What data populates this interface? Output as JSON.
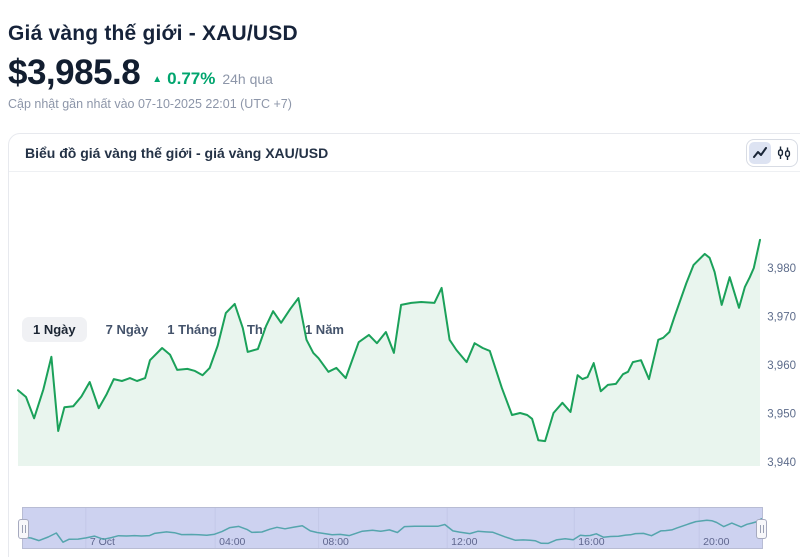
{
  "page": {
    "title": "Giá vàng thế giới - XAU/USD",
    "price": "$3,985.8",
    "change_percent": "0.77%",
    "change_direction": "up",
    "change_period": "24h qua",
    "updated_text": "Cập nhật gần nhất vào 07-10-2025 22:01 (UTC +7)"
  },
  "icons": {
    "up_arrow": "▲"
  },
  "card": {
    "header": "Biểu đồ giá vàng thế giới - giá vàng XAU/USD",
    "chart_type": {
      "active": "line",
      "options": [
        "line",
        "candlestick"
      ]
    },
    "tabs": [
      {
        "label": "1 Ngày",
        "active": true
      },
      {
        "label": "7 Ngày",
        "active": false
      },
      {
        "label": "1 Tháng",
        "active": false
      },
      {
        "label": "3 Tháng",
        "active": false
      },
      {
        "label": "1 Năm",
        "active": false
      }
    ]
  },
  "colors": {
    "accent_green": "#00a56e",
    "line_green": "#1ba15a",
    "area_fill": "#e9f5ee",
    "axis_label": "#5d6c8b",
    "nav_label": "#5f668e",
    "nav_bg": "#cdd2f0",
    "nav_line": "#55a5ad",
    "nav_grid": "#c3c8e8",
    "text_navy": "#16233a",
    "text_gray": "#8d96a9"
  },
  "chart_data": {
    "type": "area",
    "title": "Biểu đồ giá vàng thế giới - giá vàng XAU/USD",
    "legend": "none",
    "grid": "off",
    "x_axis": {
      "start": "06-10-2025 22:00 (UTC +7)",
      "end": "07-10-2025 22:00 (UTC +7)",
      "unit": "hours_from_start",
      "span_hours": 24
    },
    "y_axis": {
      "side": "right",
      "range": [
        3936,
        3990
      ],
      "ticks": [
        3940,
        3950,
        3960,
        3970,
        3980
      ],
      "tick_labels": [
        "3,940",
        "3,950",
        "3,960",
        "3,970",
        "3,980"
      ]
    },
    "series": [
      {
        "name": "XAU/USD",
        "points": [
          [
            0.0,
            3954.8
          ],
          [
            0.26,
            3953.4
          ],
          [
            0.52,
            3949.0
          ],
          [
            0.82,
            3955.0
          ],
          [
            1.08,
            3961.7
          ],
          [
            1.3,
            3946.4
          ],
          [
            1.5,
            3951.3
          ],
          [
            1.79,
            3951.5
          ],
          [
            2.05,
            3953.5
          ],
          [
            2.32,
            3956.5
          ],
          [
            2.61,
            3951.1
          ],
          [
            2.87,
            3954.0
          ],
          [
            3.1,
            3957.1
          ],
          [
            3.36,
            3956.7
          ],
          [
            3.62,
            3957.3
          ],
          [
            3.85,
            3956.7
          ],
          [
            4.11,
            3957.3
          ],
          [
            4.27,
            3961.0
          ],
          [
            4.66,
            3963.5
          ],
          [
            4.92,
            3962.1
          ],
          [
            5.15,
            3959.0
          ],
          [
            5.48,
            3959.2
          ],
          [
            5.71,
            3958.8
          ],
          [
            5.97,
            3957.9
          ],
          [
            6.2,
            3959.4
          ],
          [
            6.46,
            3964.0
          ],
          [
            6.72,
            3970.7
          ],
          [
            7.01,
            3972.6
          ],
          [
            7.27,
            3967.6
          ],
          [
            7.43,
            3962.7
          ],
          [
            7.76,
            3963.3
          ],
          [
            8.02,
            3968.0
          ],
          [
            8.25,
            3971.1
          ],
          [
            8.51,
            3968.7
          ],
          [
            8.8,
            3971.5
          ],
          [
            9.07,
            3973.8
          ],
          [
            9.33,
            3965.2
          ],
          [
            9.55,
            3962.5
          ],
          [
            9.72,
            3961.4
          ],
          [
            10.04,
            3958.6
          ],
          [
            10.3,
            3959.4
          ],
          [
            10.6,
            3957.3
          ],
          [
            11.02,
            3964.7
          ],
          [
            11.35,
            3966.2
          ],
          [
            11.61,
            3964.5
          ],
          [
            11.9,
            3966.8
          ],
          [
            12.16,
            3962.5
          ],
          [
            12.39,
            3972.4
          ],
          [
            12.72,
            3972.8
          ],
          [
            13.04,
            3973.0
          ],
          [
            13.47,
            3972.8
          ],
          [
            13.7,
            3975.9
          ],
          [
            13.96,
            3965.2
          ],
          [
            14.18,
            3963.1
          ],
          [
            14.51,
            3960.6
          ],
          [
            14.77,
            3964.5
          ],
          [
            15.03,
            3963.5
          ],
          [
            15.26,
            3962.9
          ],
          [
            15.65,
            3955.3
          ],
          [
            15.98,
            3949.7
          ],
          [
            16.24,
            3950.1
          ],
          [
            16.47,
            3949.7
          ],
          [
            16.63,
            3948.9
          ],
          [
            16.83,
            3944.5
          ],
          [
            17.05,
            3944.3
          ],
          [
            17.32,
            3950.1
          ],
          [
            17.61,
            3952.2
          ],
          [
            17.87,
            3950.3
          ],
          [
            18.1,
            3957.9
          ],
          [
            18.26,
            3957.1
          ],
          [
            18.42,
            3957.5
          ],
          [
            18.62,
            3960.4
          ],
          [
            18.85,
            3954.6
          ],
          [
            19.08,
            3955.9
          ],
          [
            19.34,
            3956.1
          ],
          [
            19.57,
            3958.1
          ],
          [
            19.73,
            3958.6
          ],
          [
            19.89,
            3960.6
          ],
          [
            20.15,
            3961.0
          ],
          [
            20.41,
            3957.1
          ],
          [
            20.71,
            3965.2
          ],
          [
            20.87,
            3965.6
          ],
          [
            21.07,
            3966.8
          ],
          [
            21.23,
            3969.9
          ],
          [
            21.62,
            3976.9
          ],
          [
            21.85,
            3980.6
          ],
          [
            22.21,
            3982.9
          ],
          [
            22.37,
            3982.1
          ],
          [
            22.53,
            3979.2
          ],
          [
            22.76,
            3972.4
          ],
          [
            23.02,
            3978.1
          ],
          [
            23.32,
            3971.8
          ],
          [
            23.51,
            3976.1
          ],
          [
            23.67,
            3978.1
          ],
          [
            23.8,
            3980.0
          ],
          [
            24.0,
            3985.8
          ]
        ]
      }
    ],
    "navigator": {
      "tick_labels": [
        {
          "label": "7 Oct",
          "f": 0.085
        },
        {
          "label": "04:00",
          "f": 0.26
        },
        {
          "label": "08:00",
          "f": 0.4
        },
        {
          "label": "12:00",
          "f": 0.574
        },
        {
          "label": "16:00",
          "f": 0.746
        },
        {
          "label": "20:00",
          "f": 0.915
        }
      ]
    }
  }
}
